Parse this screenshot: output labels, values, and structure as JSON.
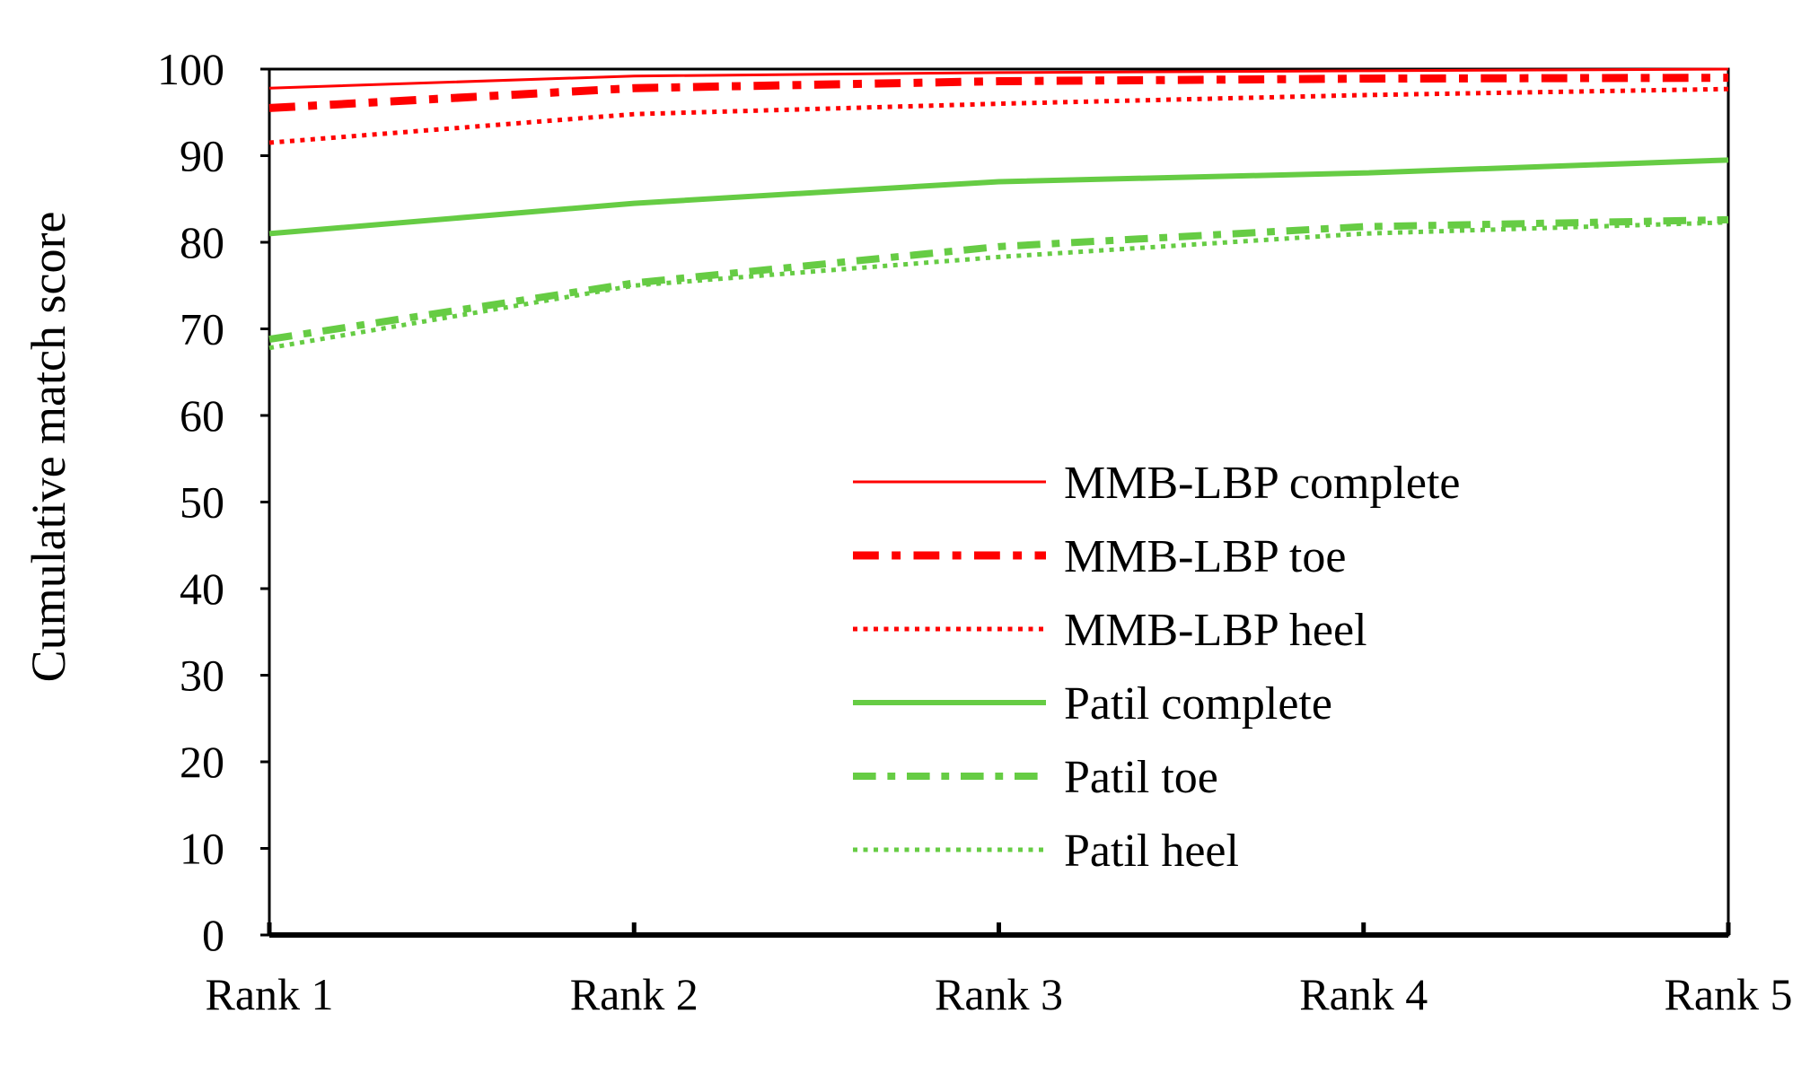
{
  "chart_data": {
    "type": "line",
    "title": "",
    "xlabel": "",
    "ylabel": "Cumulative match score",
    "categories": [
      "Rank 1",
      "Rank 2",
      "Rank 3",
      "Rank 4",
      "Rank 5"
    ],
    "ylim": [
      0,
      100
    ],
    "yticks": [
      0,
      10,
      20,
      30,
      40,
      50,
      60,
      70,
      80,
      90,
      100
    ],
    "grid": false,
    "legend": "center-right",
    "series": [
      {
        "name": "MMB-LBP complete",
        "values": [
          97.8,
          99.2,
          99.6,
          99.8,
          100.0
        ],
        "color": "#ff0000",
        "style": "solid",
        "width": 3
      },
      {
        "name": "MMB-LBP toe",
        "values": [
          95.5,
          97.8,
          98.6,
          98.9,
          99.0
        ],
        "color": "#ff0000",
        "style": "dashdot",
        "width": 9
      },
      {
        "name": "MMB-LBP heel",
        "values": [
          91.5,
          94.8,
          96.0,
          97.0,
          97.7
        ],
        "color": "#ff0000",
        "style": "dotted",
        "width": 5
      },
      {
        "name": "Patil complete",
        "values": [
          81.0,
          84.5,
          87.0,
          88.0,
          89.5
        ],
        "color": "#66cc44",
        "style": "solid",
        "width": 6
      },
      {
        "name": "Patil toe",
        "values": [
          68.8,
          75.3,
          79.5,
          81.8,
          82.6
        ],
        "color": "#66cc44",
        "style": "dashdot",
        "width": 8
      },
      {
        "name": "Patil heel",
        "values": [
          67.8,
          75.0,
          78.3,
          81.0,
          82.3
        ],
        "color": "#66cc44",
        "style": "dotted",
        "width": 5
      }
    ]
  }
}
